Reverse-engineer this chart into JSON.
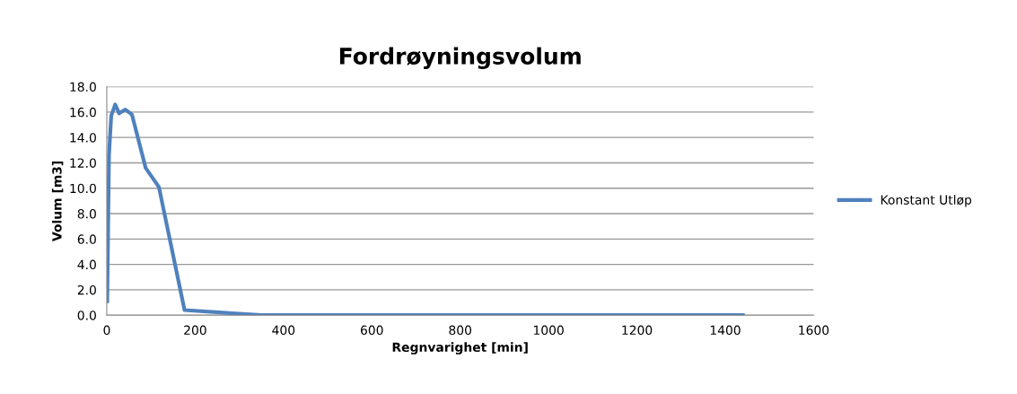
{
  "chart_data": {
    "type": "line",
    "title": "Fordrøyningsvolum",
    "xlabel": "Regnvarighet [min]",
    "ylabel": "Volum [m3]",
    "series": [
      {
        "name": "Konstant Utløp",
        "color": "#4f81bd",
        "x": [
          1,
          5,
          10,
          19,
          28,
          42,
          57,
          88,
          118,
          176,
          350,
          1440
        ],
        "values": [
          1.1,
          12.6,
          15.7,
          16.6,
          15.9,
          16.2,
          15.8,
          11.6,
          10.1,
          0.4,
          0.0,
          0.0
        ]
      }
    ],
    "xlim": [
      0,
      1600
    ],
    "xticks": [
      0,
      200,
      400,
      600,
      800,
      1000,
      1200,
      1400,
      1600
    ],
    "ylim": [
      0,
      18
    ],
    "yticks": [
      {
        "value": 0,
        "label": "0.0"
      },
      {
        "value": 2,
        "label": "2.0"
      },
      {
        "value": 4,
        "label": "4.0"
      },
      {
        "value": 6,
        "label": "6.0"
      },
      {
        "value": 8,
        "label": "8.0"
      },
      {
        "value": 10,
        "label": "10.0"
      },
      {
        "value": 12,
        "label": "12.0"
      },
      {
        "value": 14,
        "label": "14.0"
      },
      {
        "value": 16,
        "label": "16.0"
      },
      {
        "value": 18,
        "label": "18.0"
      }
    ],
    "grid": "y",
    "legend": "right",
    "marker": "none",
    "line_style": "solid"
  }
}
